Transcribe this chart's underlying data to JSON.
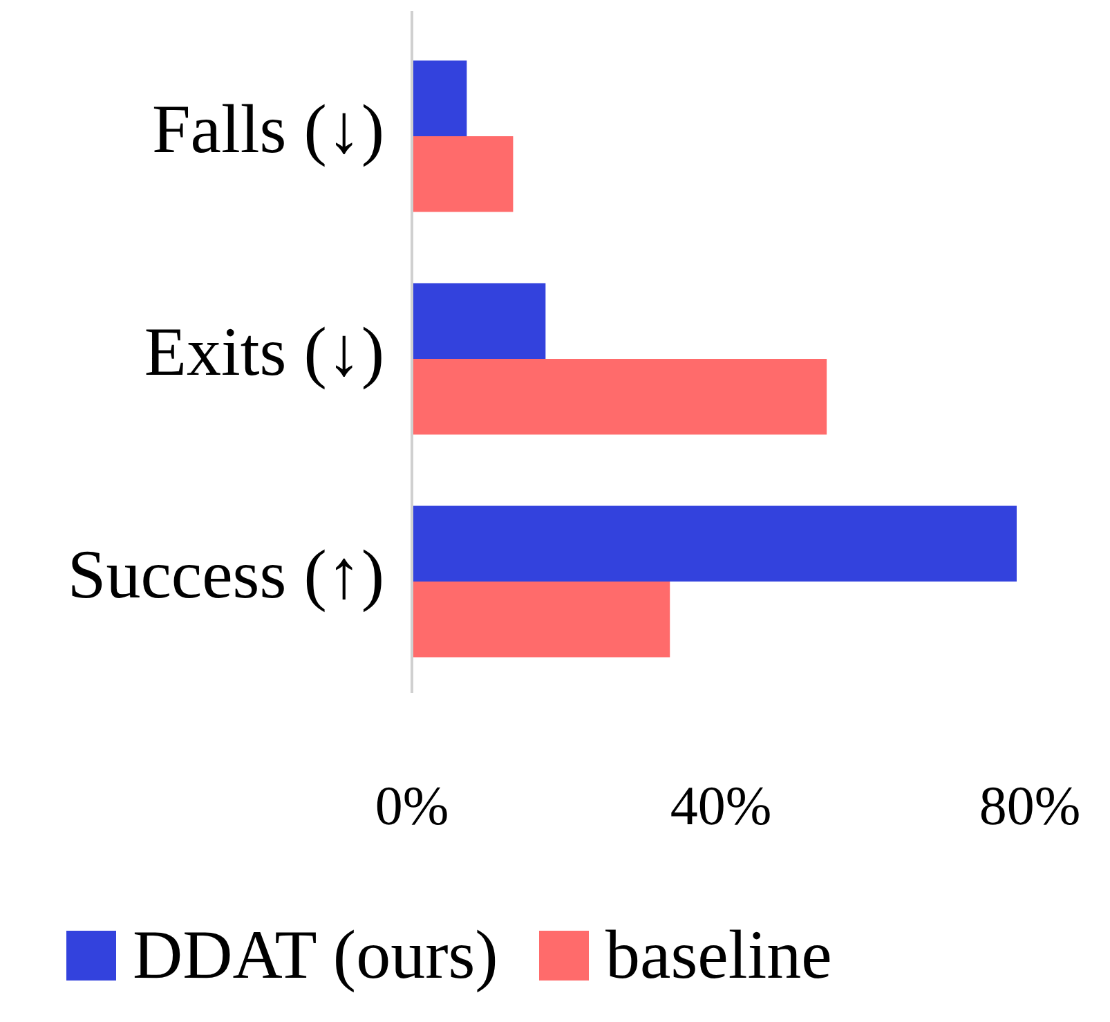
{
  "chart_data": {
    "type": "bar",
    "orientation": "horizontal",
    "categories": [
      "Falls (↓)",
      "Exits (↓)",
      "Success (↑)"
    ],
    "series": [
      {
        "name": "DDAT (ours)",
        "color": "#3342dd",
        "values": [
          7.1,
          17.3,
          78.3
        ]
      },
      {
        "name": "baseline",
        "color": "#ff6b6b",
        "values": [
          13.1,
          53.7,
          33.4
        ]
      }
    ],
    "xlim": [
      0,
      80
    ],
    "xticks": [
      {
        "value": 0,
        "label": "0%"
      },
      {
        "value": 40,
        "label": "40%"
      },
      {
        "value": 80,
        "label": "80%"
      }
    ],
    "grid": false,
    "legend": "bottom"
  }
}
